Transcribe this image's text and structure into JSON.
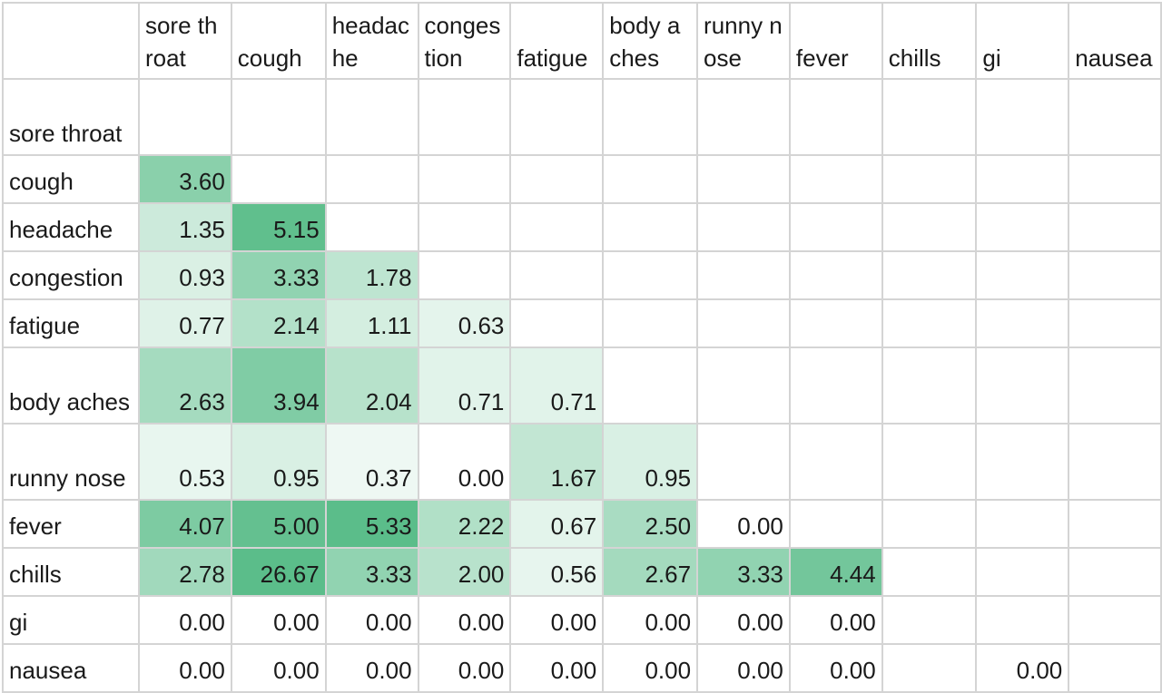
{
  "chart_data": {
    "type": "heatmap",
    "columns": [
      "sore throat",
      "cough",
      "headache",
      "congestion",
      "fatigue",
      "body aches",
      "runny nose",
      "fever",
      "chills",
      "gi",
      "nausea"
    ],
    "rows": [
      "sore throat",
      "cough",
      "headache",
      "congestion",
      "fatigue",
      "body aches",
      "runny nose",
      "fever",
      "chills",
      "gi",
      "nausea"
    ],
    "column_labels": [
      "sore throat",
      "cough",
      "headac he",
      "conges tion",
      "fatigue",
      "body aches",
      "runny nose",
      "fever",
      "chills",
      "gi",
      "nausea"
    ],
    "row_labels": [
      "sore throat",
      "cough",
      "headache",
      "congestion",
      "fatigue",
      "body aches",
      "runny nose",
      "fever",
      "chills",
      "gi",
      "nausea"
    ],
    "cells": [
      [
        null,
        null,
        null,
        null,
        null,
        null,
        null,
        null,
        null,
        null,
        null
      ],
      [
        "3.60",
        null,
        null,
        null,
        null,
        null,
        null,
        null,
        null,
        null,
        null
      ],
      [
        "1.35",
        "5.15",
        null,
        null,
        null,
        null,
        null,
        null,
        null,
        null,
        null
      ],
      [
        "0.93",
        "3.33",
        "1.78",
        null,
        null,
        null,
        null,
        null,
        null,
        null,
        null
      ],
      [
        "0.77",
        "2.14",
        "1.11",
        "0.63",
        null,
        null,
        null,
        null,
        null,
        null,
        null
      ],
      [
        "2.63",
        "3.94",
        "2.04",
        "0.71",
        "0.71",
        null,
        null,
        null,
        null,
        null,
        null
      ],
      [
        "0.53",
        "0.95",
        "0.37",
        "0.00",
        "1.67",
        "0.95",
        null,
        null,
        null,
        null,
        null
      ],
      [
        "4.07",
        "5.00",
        "5.33",
        "2.22",
        "0.67",
        "2.50",
        "0.00",
        null,
        null,
        null,
        null
      ],
      [
        "2.78",
        "26.67",
        "3.33",
        "2.00",
        "0.56",
        "2.67",
        "3.33",
        "4.44",
        null,
        null,
        null
      ],
      [
        "0.00",
        "0.00",
        "0.00",
        "0.00",
        "0.00",
        "0.00",
        "0.00",
        "0.00",
        null,
        null,
        null
      ],
      [
        "0.00",
        "0.00",
        "0.00",
        "0.00",
        "0.00",
        "0.00",
        "0.00",
        "0.00",
        null,
        "0.00",
        null
      ]
    ],
    "color_scale": {
      "low": "#ffffff",
      "high": "#5bbd8a",
      "max_value": 5.33,
      "clamp_above_max": true
    },
    "grid_color": "#d4d4d4"
  }
}
